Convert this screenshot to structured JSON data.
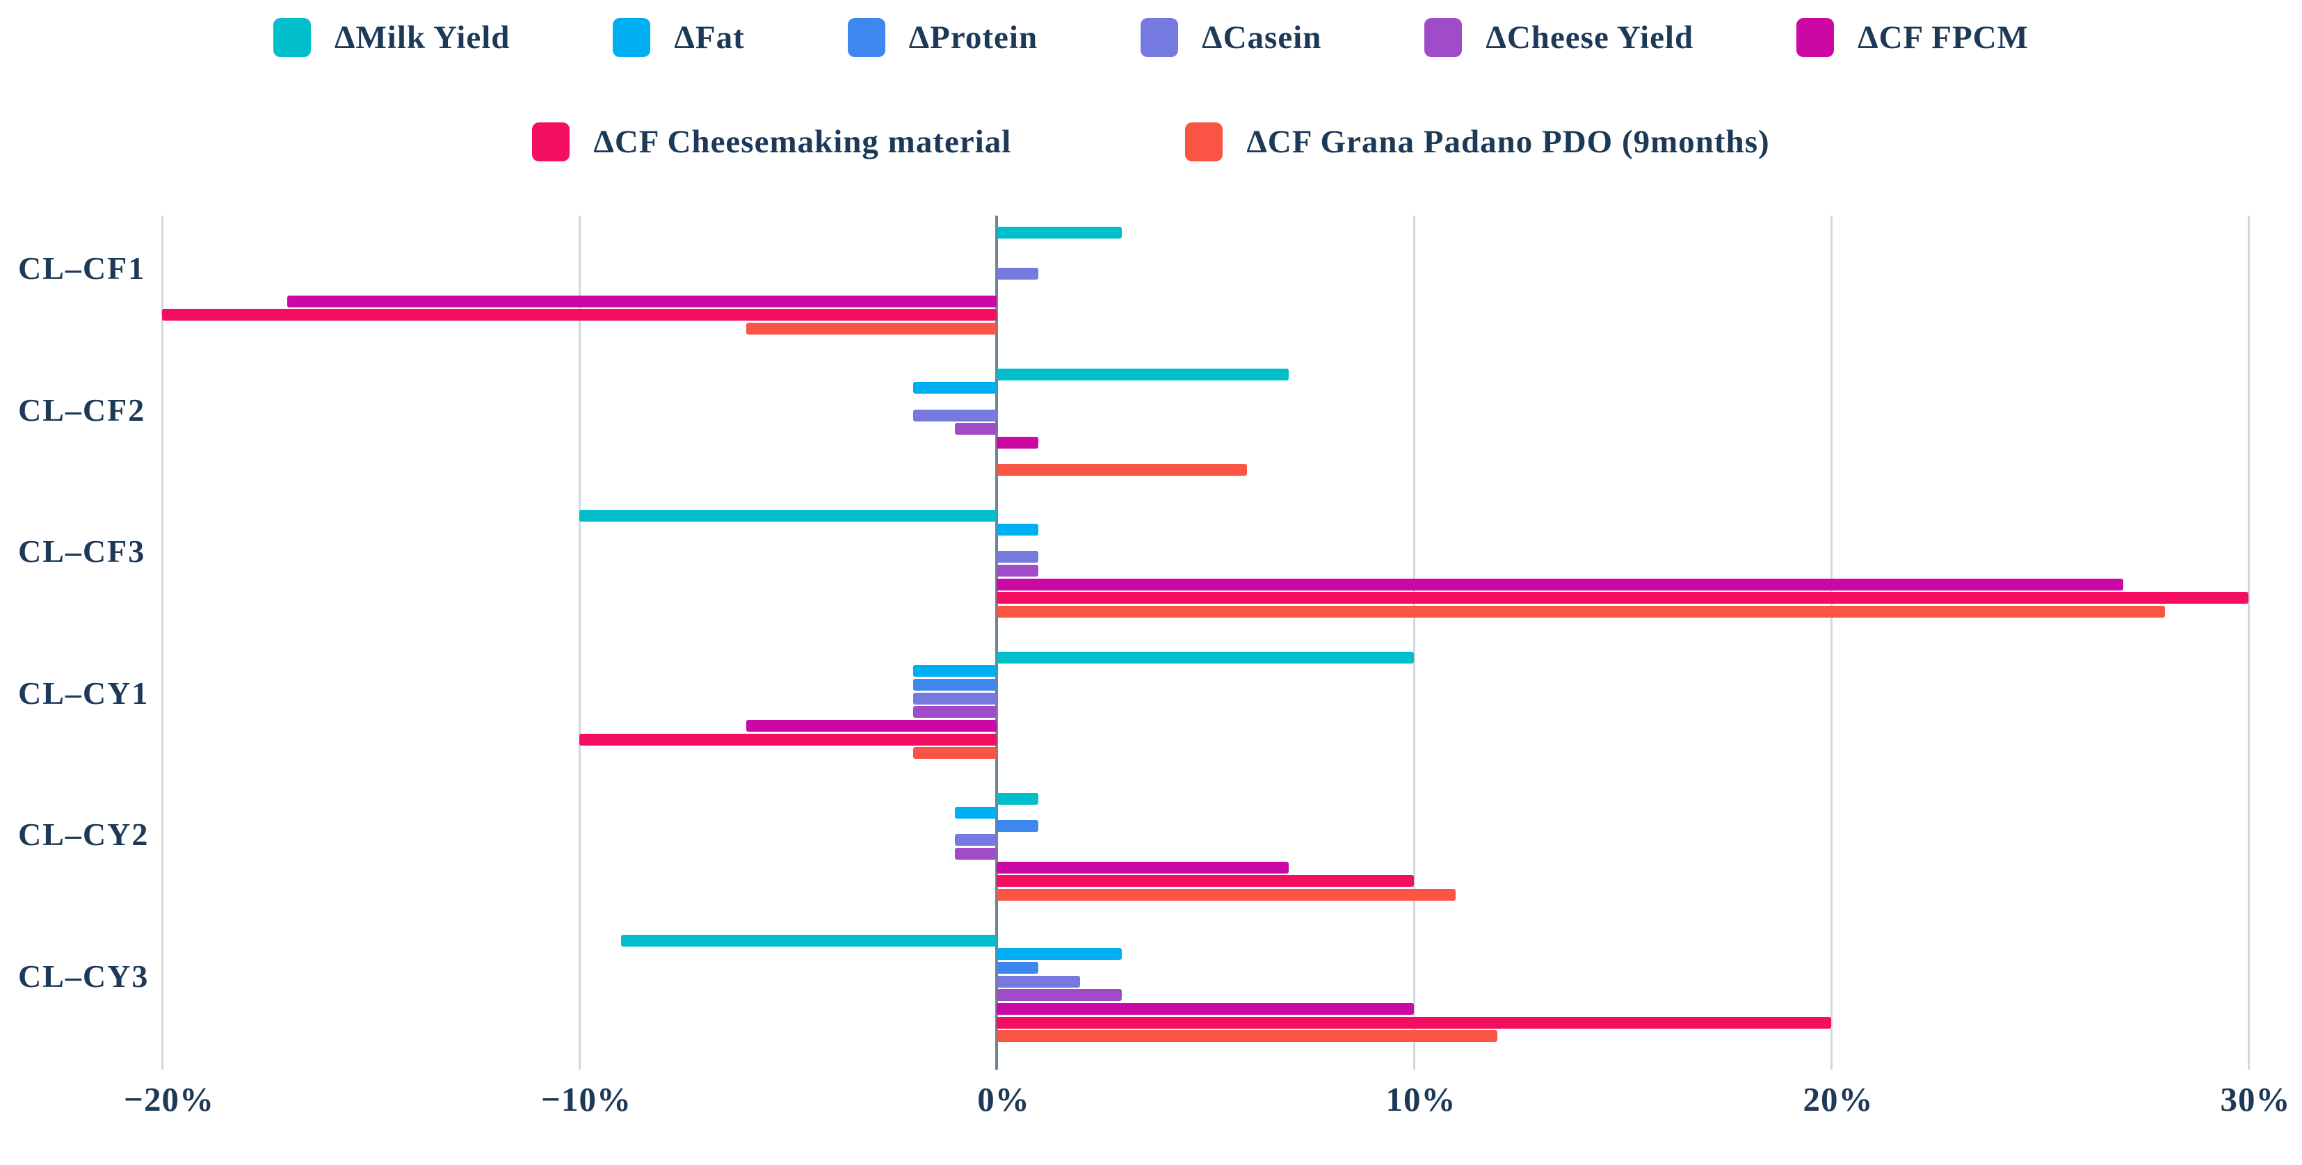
{
  "figure": {
    "kind": "horizontal grouped bar chart",
    "text_color": "#1c3a57",
    "grid_color": "#cfd9de",
    "zero_line_color": "#6e8494",
    "background": "#ffffff"
  },
  "legend": {
    "rows": [
      [
        {
          "label": "ΔMilk Yield",
          "color": "#00bfcb"
        },
        {
          "label": "ΔFat",
          "color": "#00aef2"
        },
        {
          "label": "ΔProtein",
          "color": "#3e87ef"
        },
        {
          "label": "ΔCasein",
          "color": "#7679e0"
        },
        {
          "label": "ΔCheese Yield",
          "color": "#a04cc8"
        },
        {
          "label": "ΔCF FPCM",
          "color": "#cb07a4"
        }
      ],
      [
        {
          "label": "ΔCF Cheesemaking material",
          "color": "#f40e62"
        },
        {
          "label": "ΔCF Grana Padano PDO (9months)",
          "color": "#fa5444"
        }
      ]
    ]
  },
  "chart_data": {
    "type": "bar",
    "orientation": "horizontal",
    "grid": true,
    "legend_position": "top",
    "categories": [
      "CL–CF1",
      "CL–CF2",
      "CL–CF3",
      "CL–CY1",
      "CL–CY2",
      "CL–CY3"
    ],
    "series": [
      {
        "name": "ΔMilk Yield",
        "color": "#00bfcb",
        "values": [
          3,
          7,
          -10,
          10,
          1,
          -9
        ]
      },
      {
        "name": "ΔFat",
        "color": "#00aef2",
        "values": [
          0,
          -2,
          1,
          -2,
          -1,
          3
        ]
      },
      {
        "name": "ΔProtein",
        "color": "#3e87ef",
        "values": [
          0,
          0,
          0,
          -2,
          1,
          1
        ]
      },
      {
        "name": "ΔCasein",
        "color": "#7679e0",
        "values": [
          1,
          -2,
          1,
          -2,
          -1,
          2
        ]
      },
      {
        "name": "ΔCheese Yield",
        "color": "#a04cc8",
        "values": [
          0,
          -1,
          1,
          -2,
          -1,
          3
        ]
      },
      {
        "name": "ΔCF FPCM",
        "color": "#cb07a4",
        "values": [
          -17,
          1,
          27,
          -6,
          7,
          10
        ]
      },
      {
        "name": "ΔCF Cheesemaking material",
        "color": "#f40e62",
        "values": [
          -20,
          0,
          30,
          -10,
          10,
          20
        ]
      },
      {
        "name": "ΔCF Grana Padano PDO (9months)",
        "color": "#fa5444",
        "values": [
          -6,
          6,
          28,
          -2,
          11,
          12
        ]
      }
    ],
    "x_axis": {
      "min": -20,
      "max": 30,
      "tick_step": 10,
      "unit": "%",
      "ticks": [
        {
          "label": "−20%",
          "value": -20
        },
        {
          "label": "−10%",
          "value": -10
        },
        {
          "label": "0%",
          "value": 0
        },
        {
          "label": "10%",
          "value": 10
        },
        {
          "label": "20%",
          "value": 20
        },
        {
          "label": "30%",
          "value": 30
        }
      ]
    },
    "title": "",
    "xlabel": "",
    "ylabel": ""
  }
}
